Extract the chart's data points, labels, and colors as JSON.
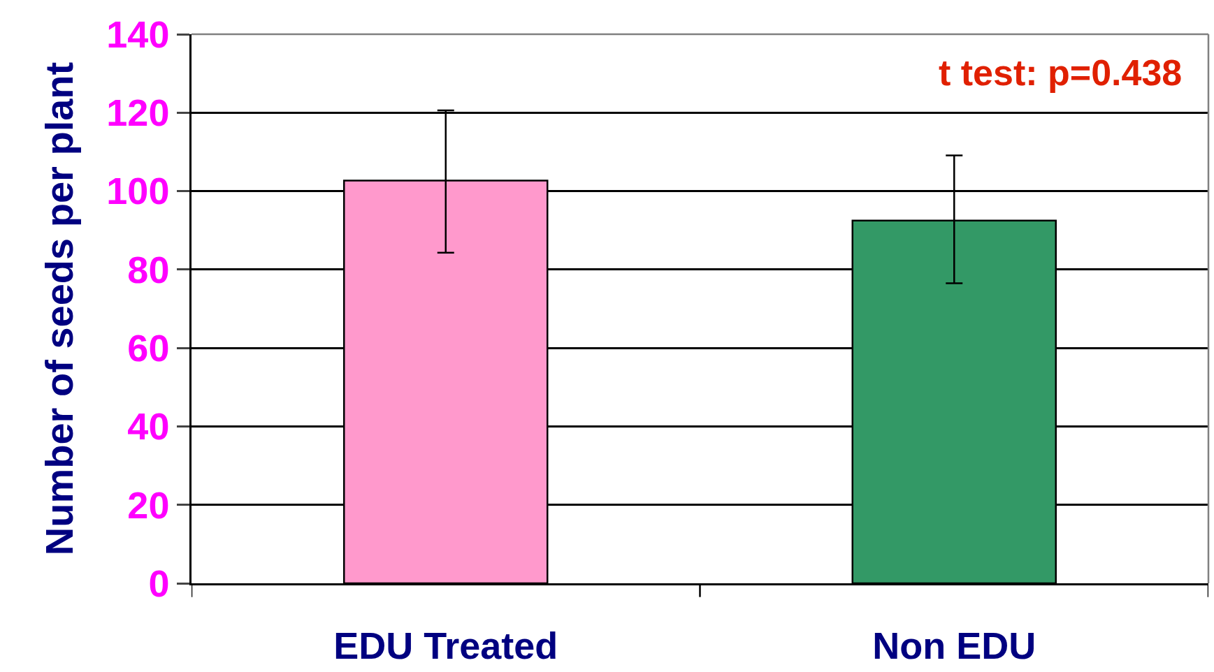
{
  "chart_data": {
    "type": "bar",
    "ylabel": "Number of seeds per plant",
    "categories": [
      "EDU Treated",
      "Non EDU"
    ],
    "values": [
      102.7,
      92.5
    ],
    "colors": [
      "#ff99cc",
      "#339966"
    ],
    "errors": [
      [
        84.3,
        120.6
      ],
      [
        76.5,
        109.1
      ]
    ],
    "ylim": [
      0,
      140
    ],
    "yticks": [
      0,
      20,
      40,
      60,
      80,
      100,
      120,
      140
    ],
    "grid": "y",
    "annotations": [
      "t test: p=0.438"
    ]
  }
}
